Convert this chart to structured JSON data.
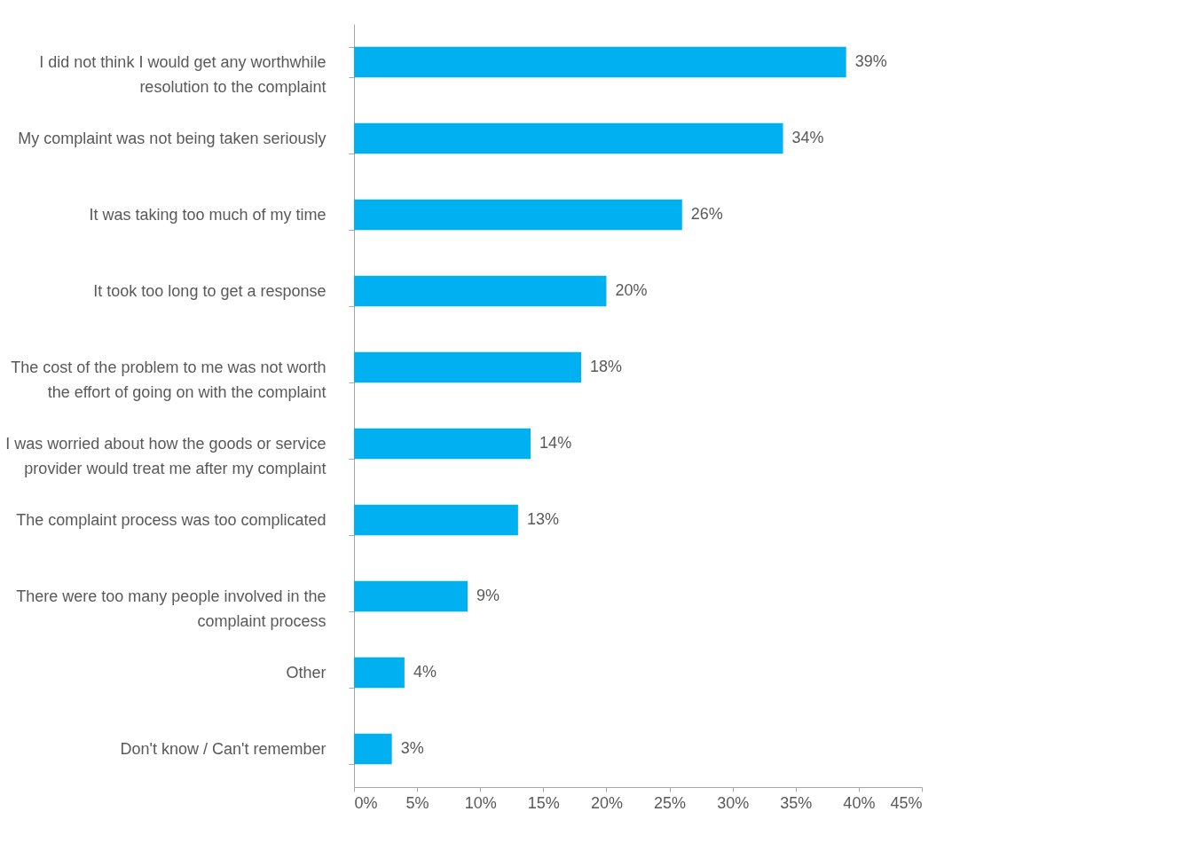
{
  "chart_data": {
    "type": "bar",
    "orientation": "horizontal",
    "categories": [
      "I did not think I would get any worthwhile resolution to the complaint",
      "My complaint was not being taken seriously",
      "It was taking too much of my time",
      "It took too long to get a response",
      "The cost of the problem to me was not worth the effort of going on with the complaint",
      "I was worried about how the goods or service provider would treat me after my complaint",
      "The complaint process was too complicated",
      "There were too many people involved in the complaint process",
      "Other",
      "Don't know / Can't remember"
    ],
    "values": [
      39,
      34,
      26,
      20,
      18,
      14,
      13,
      9,
      4,
      3
    ],
    "value_labels": [
      "39%",
      "34%",
      "26%",
      "20%",
      "18%",
      "14%",
      "13%",
      "9%",
      "4%",
      "3%"
    ],
    "color": "#00b0f0",
    "xlim": [
      0,
      45
    ],
    "xticks": [
      {
        "value": 0,
        "label": "0%"
      },
      {
        "value": 5,
        "label": "5%"
      },
      {
        "value": 10,
        "label": "10%"
      },
      {
        "value": 15,
        "label": "15%"
      },
      {
        "value": 20,
        "label": "20%"
      },
      {
        "value": 25,
        "label": "25%"
      },
      {
        "value": 30,
        "label": "30%"
      },
      {
        "value": 35,
        "label": "35%"
      },
      {
        "value": 40,
        "label": "40%"
      },
      {
        "value": 45,
        "label": "45%"
      }
    ],
    "grid": false
  }
}
